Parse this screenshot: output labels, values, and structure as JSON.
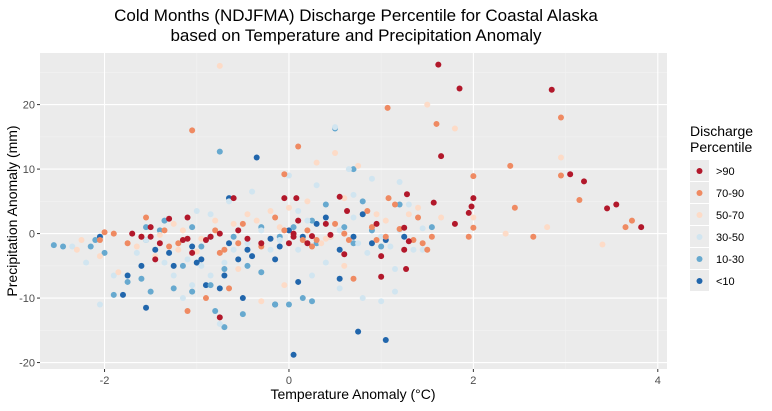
{
  "chart_data": {
    "type": "scatter",
    "title_line1": "Cold Months (NDJFMA) Discharge Percentile for Coastal Alaska",
    "title_line2": "based on Temperature and Precipitation Anomaly",
    "xlabel": "Temperature Anomaly (°C)",
    "ylabel": "Precipitation Anomaly (mm)",
    "xlim": [
      -2.7,
      4.1
    ],
    "ylim": [
      -21,
      28
    ],
    "xticks": [
      -2,
      0,
      2,
      4
    ],
    "yticks": [
      -20,
      -10,
      0,
      10,
      20
    ],
    "grid": true,
    "legend": {
      "title_line1": "Discharge",
      "title_line2": "Percentile",
      "placement": "right"
    },
    "colors": {
      "panel_bg": "#ebebeb",
      "grid_major": "#ffffff",
      "grid_minor": "#f2f2f2"
    },
    "series": [
      {
        "name": ">90",
        "color": "#b2182b",
        "points": [
          [
            1.62,
            26.2
          ],
          [
            1.85,
            22.5
          ],
          [
            2.85,
            22.3
          ],
          [
            3.05,
            9.2
          ],
          [
            3.2,
            8.1
          ],
          [
            3.55,
            4.5
          ],
          [
            3.45,
            3.9
          ],
          [
            3.82,
            1.0
          ],
          [
            2.0,
            5.5
          ],
          [
            1.98,
            4.2
          ],
          [
            1.8,
            1.5
          ],
          [
            1.95,
            3.2
          ],
          [
            1.57,
            4.8
          ],
          [
            1.65,
            12.0
          ],
          [
            1.3,
            -1.2
          ],
          [
            1.25,
            -2.5
          ],
          [
            1.27,
            -5.5
          ],
          [
            1.25,
            0.9
          ],
          [
            1.0,
            -3.5
          ],
          [
            1.28,
            6.1
          ],
          [
            0.95,
            1.5
          ],
          [
            1.0,
            -6.7
          ],
          [
            0.6,
            -3.2
          ],
          [
            0.63,
            3.5
          ],
          [
            0.55,
            5.7
          ],
          [
            0.45,
            -0.2
          ],
          [
            0.4,
            1.5
          ],
          [
            0.25,
            -0.4
          ],
          [
            0.1,
            2.0
          ],
          [
            0.05,
            -0.5
          ],
          [
            0.05,
            0.0
          ],
          [
            0.0,
            -1.5
          ],
          [
            0.08,
            5.5
          ],
          [
            -0.05,
            5.5
          ],
          [
            -0.3,
            -1.5
          ],
          [
            -0.6,
            5.5
          ],
          [
            -0.75,
            -13.0
          ],
          [
            -0.9,
            -1.0
          ],
          [
            -0.85,
            -0.5
          ],
          [
            -1.05,
            -3.0
          ],
          [
            -1.1,
            -0.8
          ],
          [
            -1.15,
            -1.0
          ],
          [
            -1.3,
            2.3
          ],
          [
            -1.4,
            -1.5
          ],
          [
            -1.5,
            1.0
          ],
          [
            -1.5,
            -0.5
          ],
          [
            -1.7,
            0.0
          ],
          [
            -1.6,
            -0.5
          ],
          [
            -1.45,
            -4.0
          ],
          [
            -1.1,
            2.5
          ],
          [
            -0.75,
            0.0
          ],
          [
            -0.55,
            0.5
          ],
          [
            -0.45,
            -0.8
          ],
          [
            0.2,
            -1.5
          ]
        ]
      },
      {
        "name": "70-90",
        "color": "#ef8a62",
        "points": [
          [
            1.07,
            19.5
          ],
          [
            1.6,
            17.0
          ],
          [
            2.95,
            18.0
          ],
          [
            2.0,
            8.9
          ],
          [
            2.4,
            10.5
          ],
          [
            2.95,
            9.0
          ],
          [
            3.15,
            5.2
          ],
          [
            3.72,
            2.0
          ],
          [
            3.65,
            1.0
          ],
          [
            2.45,
            4.0
          ],
          [
            2.0,
            0.9
          ],
          [
            1.95,
            -0.5
          ],
          [
            2.65,
            -0.5
          ],
          [
            1.55,
            -0.5
          ],
          [
            1.45,
            -1.5
          ],
          [
            1.5,
            -2.5
          ],
          [
            1.35,
            -1.0
          ],
          [
            1.15,
            4.5
          ],
          [
            1.08,
            5.5
          ],
          [
            1.05,
            -0.5
          ],
          [
            1.4,
            2.5
          ],
          [
            1.2,
            0.7
          ],
          [
            0.95,
            -1.0
          ],
          [
            0.9,
            1.0
          ],
          [
            0.85,
            3.5
          ],
          [
            0.65,
            -1.0
          ],
          [
            0.5,
            1.5
          ],
          [
            0.6,
            0.0
          ],
          [
            0.3,
            -1.0
          ],
          [
            0.2,
            0.5
          ],
          [
            0.25,
            -2.0
          ],
          [
            0.1,
            13.5
          ],
          [
            -0.05,
            9.2
          ],
          [
            0.15,
            -1.0
          ],
          [
            -0.05,
            0.5
          ],
          [
            -0.15,
            2.5
          ],
          [
            -0.3,
            -2.0
          ],
          [
            -0.55,
            -1.5
          ],
          [
            -0.5,
            1.5
          ],
          [
            -0.7,
            -2.5
          ],
          [
            -0.75,
            -3.0
          ],
          [
            -0.8,
            0.5
          ],
          [
            -0.65,
            -8.5
          ],
          [
            -0.9,
            -10.0
          ],
          [
            -1.1,
            -12.0
          ],
          [
            -1.05,
            16.0
          ],
          [
            -1.2,
            -1.5
          ],
          [
            -1.35,
            0.5
          ],
          [
            -1.3,
            -2.0
          ],
          [
            -1.6,
            -0.5
          ],
          [
            -1.9,
            0.0
          ],
          [
            -2.0,
            0.2
          ],
          [
            -2.05,
            -1.0
          ],
          [
            -1.75,
            -1.5
          ],
          [
            -1.55,
            2.5
          ],
          [
            0.7,
            -7.0
          ]
        ]
      },
      {
        "name": "50-70",
        "color": "#fddbc7",
        "points": [
          [
            -0.75,
            26.0
          ],
          [
            1.5,
            20.0
          ],
          [
            1.8,
            16.3
          ],
          [
            2.95,
            11.8
          ],
          [
            2.8,
            1.0
          ],
          [
            2.35,
            0.0
          ],
          [
            3.4,
            -1.7
          ],
          [
            2.0,
            2.5
          ],
          [
            1.65,
            2.5
          ],
          [
            1.4,
            4.0
          ],
          [
            1.3,
            3.0
          ],
          [
            1.05,
            2.0
          ],
          [
            0.95,
            3.0
          ],
          [
            0.75,
            10.5
          ],
          [
            0.5,
            12.5
          ],
          [
            0.6,
            5.5
          ],
          [
            0.3,
            11.0
          ],
          [
            0.45,
            -0.5
          ],
          [
            0.35,
            -1.5
          ],
          [
            0.2,
            5.0
          ],
          [
            0.0,
            4.0
          ],
          [
            -0.1,
            1.0
          ],
          [
            -0.2,
            3.5
          ],
          [
            -0.35,
            2.0
          ],
          [
            -0.45,
            3.0
          ],
          [
            -0.6,
            1.5
          ],
          [
            -0.8,
            2.0
          ],
          [
            -0.95,
            -0.8
          ],
          [
            -1.0,
            -2.8
          ],
          [
            -1.15,
            0.5
          ],
          [
            -1.25,
            1.5
          ],
          [
            -1.2,
            -2.5
          ],
          [
            -1.4,
            -0.2
          ],
          [
            -1.45,
            -3.5
          ],
          [
            -1.65,
            -2.0
          ],
          [
            -1.85,
            -6.0
          ],
          [
            -2.3,
            -2.5
          ],
          [
            -2.25,
            -1.0
          ],
          [
            -2.05,
            -3.5
          ],
          [
            -0.55,
            -5.5
          ],
          [
            -0.3,
            -10.5
          ],
          [
            0.6,
            -5.0
          ],
          [
            0.4,
            -0.8
          ],
          [
            -0.05,
            -8.0
          ]
        ]
      },
      {
        "name": "30-50",
        "color": "#d1e5f0",
        "points": [
          [
            0.5,
            16.5
          ],
          [
            0.65,
            10.0
          ],
          [
            0.9,
            8.5
          ],
          [
            1.2,
            8.0
          ],
          [
            0.7,
            6.0
          ],
          [
            0.3,
            7.5
          ],
          [
            0.1,
            3.5
          ],
          [
            0.2,
            2.0
          ],
          [
            -0.1,
            -1.0
          ],
          [
            -0.2,
            -2.5
          ],
          [
            -0.45,
            -1.5
          ],
          [
            -0.6,
            -2.5
          ],
          [
            -0.7,
            -4.5
          ],
          [
            -0.85,
            -6.5
          ],
          [
            -0.95,
            -5.0
          ],
          [
            -1.05,
            -8.0
          ],
          [
            -1.15,
            -10.0
          ],
          [
            -1.25,
            -6.5
          ],
          [
            -1.35,
            -4.5
          ],
          [
            -1.55,
            -1.0
          ],
          [
            -1.65,
            -3.0
          ],
          [
            -1.9,
            -6.5
          ],
          [
            -2.05,
            -11.0
          ],
          [
            -2.2,
            -4.5
          ],
          [
            -2.35,
            -2.0
          ],
          [
            -1.0,
            3.5
          ],
          [
            -0.85,
            3.0
          ],
          [
            -0.65,
            5.0
          ],
          [
            -0.4,
            6.5
          ],
          [
            0.0,
            9.0
          ],
          [
            0.1,
            -2.5
          ],
          [
            0.25,
            -6.5
          ],
          [
            0.4,
            -4.5
          ],
          [
            0.55,
            -8.5
          ],
          [
            0.85,
            -3.0
          ],
          [
            0.75,
            -1.5
          ],
          [
            1.0,
            -0.5
          ],
          [
            1.1,
            -2.0
          ],
          [
            1.15,
            -5.5
          ],
          [
            1.35,
            -2.5
          ],
          [
            1.3,
            4.5
          ],
          [
            1.45,
            0.8
          ],
          [
            0.55,
            0.5
          ],
          [
            0.7,
            2.5
          ],
          [
            0.8,
            -10.0
          ],
          [
            1.0,
            -10.5
          ],
          [
            1.15,
            -9.0
          ],
          [
            -0.75,
            -14.0
          ],
          [
            -1.1,
            -4.0
          ],
          [
            -0.3,
            0.5
          ],
          [
            1.2,
            0.5
          ],
          [
            1.45,
            -2.5
          ]
        ]
      },
      {
        "name": "10-30",
        "color": "#67a9cf",
        "points": [
          [
            -0.75,
            12.7
          ],
          [
            0.5,
            16.3
          ],
          [
            0.7,
            10.0
          ],
          [
            1.55,
            1.0
          ],
          [
            1.2,
            4.5
          ],
          [
            0.8,
            5.0
          ],
          [
            0.6,
            1.0
          ],
          [
            0.4,
            4.5
          ],
          [
            0.25,
            2.0
          ],
          [
            0.3,
            -1.5
          ],
          [
            0.15,
            -10.0
          ],
          [
            0.25,
            -10.5
          ],
          [
            0.0,
            -11.0
          ],
          [
            -0.15,
            -11.0
          ],
          [
            -0.3,
            -6.0
          ],
          [
            -0.45,
            -5.0
          ],
          [
            -0.5,
            -12.5
          ],
          [
            -0.7,
            -14.5
          ],
          [
            -0.8,
            -12.0
          ],
          [
            -0.85,
            -8.0
          ],
          [
            -1.05,
            -9.0
          ],
          [
            -1.15,
            -5.0
          ],
          [
            -1.25,
            -8.5
          ],
          [
            -1.5,
            -9.0
          ],
          [
            -1.6,
            -7.0
          ],
          [
            -1.75,
            -7.5
          ],
          [
            -1.9,
            -9.5
          ],
          [
            -2.0,
            -3.0
          ],
          [
            -2.1,
            -1.0
          ],
          [
            -2.15,
            -2.0
          ],
          [
            -2.45,
            -2.0
          ],
          [
            -2.55,
            -1.8
          ],
          [
            -1.55,
            -1.0
          ],
          [
            -1.35,
            2.0
          ],
          [
            -1.4,
            0.5
          ],
          [
            -1.05,
            1.0
          ],
          [
            -0.95,
            -2.0
          ],
          [
            -0.6,
            -0.5
          ],
          [
            -0.3,
            1.0
          ],
          [
            -0.1,
            -0.5
          ],
          [
            0.05,
            1.0
          ],
          [
            0.45,
            -0.5
          ],
          [
            0.7,
            -1.5
          ],
          [
            0.9,
            0.5
          ],
          [
            1.0,
            -2.0
          ],
          [
            -1.55,
            1.0
          ],
          [
            -0.7,
            -5.5
          ]
        ]
      },
      {
        "name": "<10",
        "color": "#2166ac",
        "points": [
          [
            -0.35,
            11.8
          ],
          [
            -0.65,
            5.5
          ],
          [
            0.05,
            -18.8
          ],
          [
            0.75,
            -15.2
          ],
          [
            1.05,
            -16.5
          ],
          [
            0.55,
            -7.0
          ],
          [
            0.1,
            -7.5
          ],
          [
            -0.15,
            -4.0
          ],
          [
            -0.15,
            -11.0
          ],
          [
            -0.5,
            -10.0
          ],
          [
            -0.55,
            -4.0
          ],
          [
            -0.7,
            -6.5
          ],
          [
            -0.75,
            -8.5
          ],
          [
            -0.9,
            -8.0
          ],
          [
            -1.0,
            -4.5
          ],
          [
            -1.25,
            -5.0
          ],
          [
            -1.55,
            -11.5
          ],
          [
            -1.75,
            -6.5
          ],
          [
            -1.8,
            -9.5
          ],
          [
            -2.05,
            -0.5
          ],
          [
            -1.6,
            -5.0
          ],
          [
            -1.45,
            -2.5
          ],
          [
            -1.3,
            -3.0
          ],
          [
            -1.05,
            -2.0
          ],
          [
            -0.85,
            -0.5
          ],
          [
            -0.65,
            -1.5
          ],
          [
            -0.45,
            -2.5
          ],
          [
            -0.2,
            -0.8
          ],
          [
            0.0,
            0.5
          ],
          [
            0.15,
            -0.5
          ],
          [
            0.3,
            1.5
          ],
          [
            0.4,
            2.5
          ],
          [
            0.55,
            -2.5
          ],
          [
            0.7,
            -0.5
          ],
          [
            0.8,
            3.0
          ],
          [
            0.9,
            -1.5
          ],
          [
            1.05,
            -1.0
          ],
          [
            1.25,
            -0.5
          ],
          [
            -0.4,
            -3.5
          ],
          [
            -0.1,
            -2.0
          ],
          [
            -0.95,
            -4.0
          ]
        ]
      }
    ]
  }
}
